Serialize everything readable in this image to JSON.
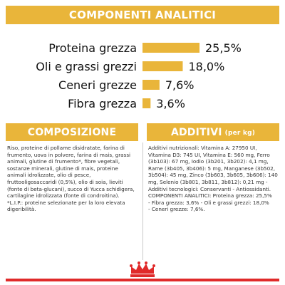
{
  "header": {
    "title": "COMPONENTI ANALITICI"
  },
  "chart_data": {
    "type": "bar",
    "categories": [
      "Proteina grezza",
      "Oli e grassi grezzi",
      "Ceneri grezze",
      "Fibra grezza"
    ],
    "values": [
      25.5,
      18.0,
      7.6,
      3.6
    ],
    "value_labels": [
      "25,5%",
      "18,0%",
      "7,6%",
      "3,6%"
    ],
    "orientation": "horizontal",
    "title": "COMPONENTI ANALITICI",
    "bar_color": "#e9b53a"
  },
  "composition": {
    "title": "COMPOSIZIONE",
    "text": "Riso, proteine di pollame disidratate, farina di frumento, uova in polvere, farina di mais, grassi animali, glutine di frumento*, fibre vegetali, sostanze minerali, glutine di mais, proteine animali idrolizzate, olio di pesce, fruttooligosaccaridi (0,5%), olio di soia, lieviti (fonte di beta-glucani), succo di Yucca schidigera, cartilagine idrolizzata (fonte di condroitina).\n*L.I.P.: proteine selezionate per la loro elevata digeribilità."
  },
  "additives": {
    "title": "ADDITIVI",
    "unit": "(per kg)",
    "text": "Additivi nutrizionali: Vitamina A: 27950 UI, Vitamina D3: 745 UI, Vitamina E: 560 mg, Ferro (3b103): 67 mg, Iodio (3b201, 3b202): 4,1 mg, Rame (3b405, 3b406): 5 mg, Manganese (3b502, 3b504): 45 mg, Zinco (3b603, 3b605, 3b606): 140 mg, Selenio (3b801, 3b811, 3b812): 0,21 mg - Additivi tecnologici: Conservanti - Antiossidanti.\nCOMPONENTI ANALITICI: Proteina grezza: 25,5%\n- Fibra grezza: 3,6% - Oli e grassi grezzi: 18,0%\n- Ceneri grezze: 7,6%."
  },
  "brand": {
    "logo": "royal-canin-crown-logo",
    "accent": "#e02a2a"
  }
}
